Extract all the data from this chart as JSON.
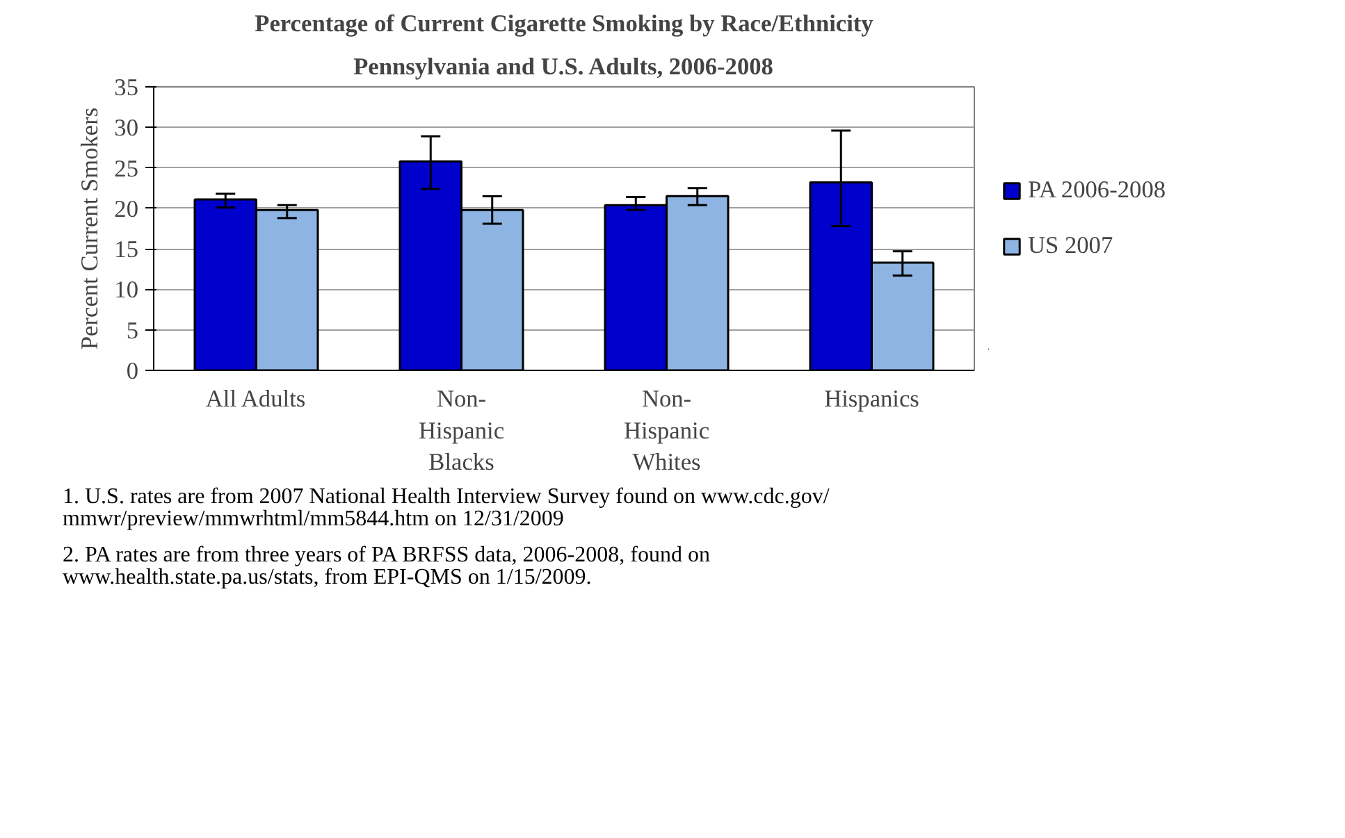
{
  "chart_data": {
    "type": "bar",
    "title": "Percentage of Current Cigarette Smoking by Race/Ethnicity",
    "subtitle": "Pennsylvania and U.S. Adults, 2006-2008",
    "ylabel": "Percent Current Smokers",
    "categories": [
      "All Adults",
      "Non-Hispanic Blacks",
      "Non-Hispanic Whites",
      "Hispanics"
    ],
    "series": [
      {
        "name": "PA 2006-2008",
        "color": "#0000cc",
        "values": [
          21.1,
          25.8,
          20.4,
          23.2
        ],
        "errors": [
          [
            20.1,
            21.8
          ],
          [
            22.4,
            28.9
          ],
          [
            19.8,
            21.4
          ],
          [
            17.8,
            29.6
          ]
        ]
      },
      {
        "name": "US 2007",
        "color": "#8db4e2",
        "values": [
          19.8,
          19.8,
          21.5,
          13.3
        ],
        "errors": [
          [
            18.8,
            20.4
          ],
          [
            18.1,
            21.5
          ],
          [
            20.4,
            22.5
          ],
          [
            11.7,
            14.7
          ]
        ]
      }
    ],
    "ylim": [
      0,
      35
    ],
    "yticks": [
      0,
      5,
      10,
      15,
      20,
      25,
      30,
      35
    ],
    "grid": "y",
    "legend": "right",
    "annotations": [
      "1.  U.S. rates are from 2007 National Health Interview Survey found on www.cdc.gov/\nmmwr/preview/mmwrhtml/mm5844.htm on 12/31/2009",
      "2. PA rates are from three years of PA BRFSS data, 2006-2008, found on\nwww.health.state.pa.us/stats, from EPI-QMS on 1/15/2009."
    ]
  }
}
